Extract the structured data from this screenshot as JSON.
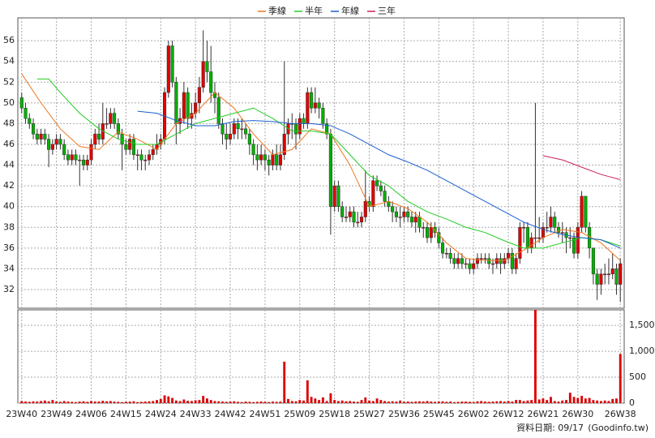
{
  "chart_data": {
    "type": "candlestick",
    "legend": "top",
    "grid": true,
    "up_color": "#e00000",
    "down_color": "#00b000",
    "xlim": [
      -1,
      156
    ],
    "ylim": [
      30.2,
      58.2
    ],
    "yticks": [
      32,
      34,
      36,
      38,
      40,
      42,
      44,
      46,
      48,
      50,
      52,
      54,
      56
    ],
    "xticks": [
      {
        "value": 0,
        "label": "23W40"
      },
      {
        "value": 9,
        "label": "23W49"
      },
      {
        "value": 18,
        "label": "24W06"
      },
      {
        "value": 27,
        "label": "24W15"
      },
      {
        "value": 36,
        "label": "24W24"
      },
      {
        "value": 45,
        "label": "24W33"
      },
      {
        "value": 54,
        "label": "24W42"
      },
      {
        "value": 63,
        "label": "24W51"
      },
      {
        "value": 72,
        "label": "25W09"
      },
      {
        "value": 81,
        "label": "25W18"
      },
      {
        "value": 90,
        "label": "25W27"
      },
      {
        "value": 99,
        "label": "25W36"
      },
      {
        "value": 108,
        "label": "25W45"
      },
      {
        "value": 117,
        "label": "26W02"
      },
      {
        "value": 126,
        "label": "26W12"
      },
      {
        "value": 135,
        "label": "26W21"
      },
      {
        "value": 144,
        "label": "26W30"
      },
      {
        "value": 155,
        "label": "26W38"
      }
    ],
    "x": [
      0,
      1,
      2,
      3,
      4,
      5,
      6,
      7,
      8,
      9,
      10,
      11,
      12,
      13,
      14,
      15,
      16,
      17,
      18,
      19,
      20,
      21,
      22,
      23,
      24,
      25,
      26,
      27,
      28,
      29,
      30,
      31,
      32,
      33,
      34,
      35,
      36,
      37,
      38,
      39,
      40,
      41,
      42,
      43,
      44,
      45,
      46,
      47,
      48,
      49,
      50,
      51,
      52,
      53,
      54,
      55,
      56,
      57,
      58,
      59,
      60,
      61,
      62,
      63,
      64,
      65,
      66,
      67,
      68,
      69,
      70,
      71,
      72,
      73,
      74,
      75,
      76,
      77,
      78,
      79,
      80,
      81,
      82,
      83,
      84,
      85,
      86,
      87,
      88,
      89,
      90,
      91,
      92,
      93,
      94,
      95,
      96,
      97,
      98,
      99,
      100,
      101,
      102,
      103,
      104,
      105,
      106,
      107,
      108,
      109,
      110,
      111,
      112,
      113,
      114,
      115,
      116,
      117,
      118,
      119,
      120,
      121,
      122,
      123,
      124,
      125,
      126,
      127,
      128,
      129,
      130,
      131,
      132,
      133,
      134,
      135,
      136,
      137,
      138,
      139,
      140,
      141,
      142,
      143,
      144,
      145,
      146,
      147,
      148,
      149,
      150,
      151,
      152,
      153,
      154,
      155
    ],
    "open": [
      50.5,
      49.5,
      48.5,
      48,
      47,
      46.5,
      47,
      46.5,
      45.5,
      46,
      46.5,
      46,
      45,
      44.5,
      45,
      44.5,
      44.5,
      44,
      44.5,
      46,
      47,
      46.5,
      48,
      48,
      49,
      48,
      47,
      46,
      45.5,
      46.5,
      45,
      45,
      44.5,
      44.5,
      45,
      45.5,
      46,
      46.5,
      51,
      55.5,
      52,
      48,
      48.5,
      51,
      48.5,
      49,
      50,
      51.5,
      54,
      53,
      51,
      50.5,
      48,
      47,
      46.5,
      47,
      48,
      47.5,
      47.5,
      47,
      46,
      45,
      44.5,
      45,
      44.5,
      44,
      45,
      44,
      45,
      47,
      48,
      48,
      47,
      48.5,
      48,
      51,
      49.5,
      50,
      49.5,
      48,
      47,
      40,
      42,
      40,
      39,
      39,
      39.5,
      38.5,
      38.5,
      39,
      40.5,
      40,
      42.5,
      42,
      41.5,
      40.5,
      40,
      39.5,
      39,
      39,
      39.5,
      39,
      38.5,
      39,
      38,
      38,
      37,
      38,
      37.5,
      36.5,
      35.5,
      35.5,
      35,
      34.5,
      35,
      34.5,
      34.5,
      34,
      34.5,
      35,
      35,
      35,
      34.5,
      34.5,
      35,
      34.5,
      35,
      35.5,
      34,
      35,
      38,
      38,
      36,
      37,
      37,
      37,
      38,
      38,
      39,
      38,
      37.5,
      37.5,
      37,
      37,
      35.5,
      38,
      41,
      38,
      36,
      33.5,
      32.5,
      33.5,
      33.5,
      33.5,
      34,
      32.5
    ],
    "high": [
      51,
      50,
      49,
      48.5,
      47.5,
      47.5,
      47.5,
      47,
      46.5,
      47,
      47,
      46.5,
      45.5,
      45.5,
      45.5,
      45,
      45,
      45,
      46.5,
      47.5,
      48,
      50,
      49.5,
      49.5,
      49.5,
      48.5,
      47.5,
      46.5,
      47,
      47,
      45.5,
      45.5,
      45,
      45.5,
      46,
      47,
      47,
      51.5,
      56,
      56,
      52.5,
      49.5,
      52,
      51.5,
      50,
      51,
      52.5,
      57,
      56,
      55.5,
      52,
      51,
      48.5,
      48,
      48,
      48.5,
      48.5,
      48.5,
      48,
      47.5,
      46.5,
      46,
      46,
      45.5,
      45,
      45.5,
      46,
      46,
      54,
      48.5,
      49,
      48.5,
      49,
      49,
      51.5,
      51.5,
      51.5,
      50.5,
      50,
      48.5,
      47.5,
      42.5,
      42.5,
      40.5,
      40,
      40,
      40,
      39.5,
      39.5,
      43.5,
      41,
      43,
      43,
      42.5,
      42,
      41,
      40.5,
      40,
      40,
      40,
      40,
      39.5,
      39.5,
      39.5,
      38.5,
      38.5,
      38.5,
      38.5,
      38,
      37,
      36,
      36,
      35.5,
      35.5,
      35.5,
      35,
      35,
      35,
      35.5,
      35.5,
      35.5,
      35.5,
      35,
      35.5,
      35.5,
      35.5,
      36,
      36,
      35.5,
      38.5,
      38.5,
      38.5,
      37.5,
      50,
      39,
      38.5,
      39.5,
      40,
      39.5,
      38.5,
      38.5,
      38,
      38,
      37.5,
      38.5,
      41.5,
      41,
      38.5,
      36,
      34,
      34,
      34.5,
      35,
      35.5,
      34.5,
      35
    ],
    "low": [
      49,
      48,
      47.5,
      46.5,
      46,
      46,
      46,
      43.8,
      45,
      45.5,
      45.5,
      44.5,
      44,
      44,
      44,
      42,
      43.5,
      43.5,
      44,
      45.5,
      46,
      46,
      47.5,
      47.5,
      47.5,
      46.5,
      43.5,
      45,
      45,
      44.5,
      43.5,
      43.5,
      43.5,
      44,
      44.5,
      45,
      45.5,
      46,
      50.5,
      51.5,
      46,
      47,
      48,
      47.5,
      47.5,
      48.5,
      49,
      51,
      52,
      50,
      49,
      47.5,
      46,
      45.5,
      46,
      46.5,
      46.5,
      46.5,
      46.5,
      45,
      44,
      43.5,
      44,
      43.5,
      43,
      43.5,
      43.5,
      43.5,
      44.5,
      46,
      46.5,
      45.5,
      46.5,
      47.5,
      47.5,
      49,
      49,
      48.5,
      47.5,
      46.5,
      37.3,
      39.5,
      39.5,
      38.5,
      38.5,
      38.5,
      38,
      38,
      38,
      38.5,
      39.5,
      39.5,
      41.5,
      41,
      40,
      39.5,
      38.5,
      38.5,
      38,
      38.5,
      38.5,
      38,
      37.5,
      37.5,
      37,
      36.5,
      36.5,
      37,
      36,
      35,
      35,
      34.5,
      34,
      34,
      34,
      34,
      33.5,
      33.5,
      34,
      34.5,
      34.5,
      34,
      33.5,
      34,
      33.5,
      34,
      34.5,
      33.5,
      33.5,
      34.5,
      36.5,
      35.5,
      35.5,
      36,
      36.5,
      36.5,
      37.5,
      37.5,
      37.5,
      37,
      36.5,
      35.5,
      36,
      35,
      35,
      37.5,
      37.5,
      35,
      32.5,
      31,
      31.5,
      32.5,
      32.5,
      33,
      31.5,
      30.8
    ],
    "close": [
      49.5,
      48.5,
      48,
      47,
      46.5,
      47,
      46.5,
      45.5,
      46,
      46.5,
      46,
      45,
      44.5,
      45,
      44.5,
      44.5,
      44,
      44.5,
      46,
      47,
      46.5,
      48,
      48,
      49,
      48,
      47,
      46,
      45.5,
      46.5,
      45,
      45,
      44.5,
      44.5,
      45,
      45.5,
      46,
      46.5,
      51,
      55.5,
      52,
      48,
      48.5,
      51,
      48.5,
      49,
      50,
      51.5,
      54,
      53,
      51,
      50.5,
      48,
      47,
      46.5,
      47,
      48,
      47.5,
      47.5,
      47,
      46,
      45,
      44.5,
      45,
      44.5,
      44,
      45,
      44,
      45,
      47,
      48,
      48,
      47,
      48.5,
      48,
      51,
      49.5,
      50,
      49.5,
      48,
      47,
      40,
      42,
      40,
      39,
      39,
      39.5,
      38.5,
      38.5,
      39,
      40.5,
      40,
      42.5,
      42,
      41.5,
      40.5,
      40,
      39.5,
      39,
      39,
      39.5,
      39,
      38.5,
      39,
      38,
      38,
      37,
      38,
      37.5,
      36.5,
      35.5,
      35.5,
      35,
      34.5,
      35,
      34.5,
      34.5,
      34,
      34.5,
      35,
      35,
      35,
      34.5,
      34.5,
      35,
      34.5,
      35,
      35.5,
      34,
      35,
      38,
      38,
      36,
      37,
      37,
      37,
      38,
      38,
      39,
      38,
      37.5,
      37.5,
      37,
      37,
      35.5,
      38,
      41,
      38,
      36,
      33.5,
      32.5,
      33.5,
      33.5,
      33.5,
      34,
      32.5,
      34.5
    ],
    "series": [
      {
        "name": "季線",
        "color": "#ee7722",
        "x": [
          0,
          5,
          10,
          15,
          20,
          25,
          30,
          35,
          40,
          45,
          50,
          55,
          60,
          65,
          70,
          75,
          80,
          85,
          90,
          95,
          100,
          105,
          110,
          115,
          120,
          125,
          130,
          135,
          140,
          145,
          150,
          155
        ],
        "values": [
          52.8,
          50,
          47.5,
          45.8,
          45.5,
          47.2,
          46.5,
          45.5,
          48,
          49,
          51,
          49.5,
          47,
          45,
          45.5,
          47.5,
          47,
          44,
          40,
          40.5,
          39.8,
          38.5,
          36.5,
          35,
          34.8,
          34.8,
          35.8,
          37,
          37.8,
          37.5,
          36.5,
          34.8
        ]
      },
      {
        "name": "半年",
        "color": "#22cc22",
        "x": [
          4,
          7,
          10,
          15,
          20,
          25,
          30,
          35,
          40,
          45,
          50,
          55,
          60,
          65,
          70,
          75,
          80,
          85,
          90,
          95,
          100,
          105,
          110,
          115,
          120,
          125,
          130,
          135,
          140,
          145,
          150,
          155
        ],
        "values": [
          52.3,
          52.3,
          51,
          49,
          47.5,
          46.5,
          46,
          46,
          47,
          48,
          48.5,
          49,
          49.5,
          48.5,
          47.3,
          47.3,
          47,
          45,
          43,
          42,
          40.5,
          39.5,
          38.8,
          38,
          37.5,
          36.7,
          36,
          36,
          36.5,
          37,
          36.8,
          36.2
        ]
      },
      {
        "name": "年線",
        "color": "#1a5fd0",
        "x": [
          30,
          35,
          40,
          45,
          50,
          55,
          60,
          65,
          70,
          75,
          80,
          85,
          90,
          95,
          100,
          105,
          110,
          115,
          120,
          125,
          130,
          135,
          140,
          145,
          150,
          155
        ],
        "values": [
          49.2,
          49,
          48.3,
          47.8,
          47.8,
          48.2,
          48.3,
          48.2,
          48,
          48,
          47.8,
          47,
          46,
          45,
          44.3,
          43.5,
          42.5,
          41.5,
          40.5,
          39.5,
          38.5,
          37.8,
          37.3,
          37,
          36.8,
          36
        ]
      },
      {
        "name": "三年",
        "color": "#cc2060",
        "x": [
          135,
          140,
          145,
          150,
          155
        ],
        "values": [
          44.9,
          44.5,
          43.8,
          43.1,
          42.6
        ]
      }
    ],
    "volume": {
      "color": "#dd0000",
      "ylim": [
        0,
        1800
      ],
      "yticks": [
        0,
        500,
        {
          "value": 1000,
          "label": "1,000"
        },
        {
          "value": 1500,
          "label": "1,500"
        }
      ],
      "values": [
        40,
        30,
        25,
        35,
        30,
        40,
        50,
        35,
        60,
        30,
        25,
        40,
        30,
        25,
        20,
        30,
        35,
        25,
        40,
        30,
        30,
        45,
        35,
        40,
        30,
        25,
        20,
        25,
        30,
        35,
        20,
        25,
        30,
        35,
        40,
        60,
        80,
        150,
        130,
        100,
        50,
        40,
        70,
        45,
        40,
        55,
        60,
        140,
        90,
        60,
        40,
        35,
        30,
        25,
        30,
        35,
        25,
        20,
        30,
        25,
        20,
        25,
        30,
        25,
        20,
        30,
        25,
        30,
        800,
        80,
        40,
        35,
        60,
        50,
        440,
        120,
        90,
        60,
        110,
        40,
        190,
        60,
        40,
        50,
        35,
        40,
        30,
        25,
        60,
        110,
        50,
        40,
        90,
        60,
        40,
        30,
        35,
        30,
        50,
        25,
        30,
        25,
        30,
        35,
        30,
        40,
        30,
        25,
        30,
        35,
        25,
        30,
        20,
        25,
        30,
        30,
        25,
        20,
        35,
        40,
        30,
        25,
        30,
        35,
        40,
        30,
        40,
        30,
        60,
        60,
        40,
        50,
        60,
        1800,
        70,
        90,
        60,
        120,
        40,
        30,
        50,
        60,
        200,
        120,
        100,
        140,
        90,
        100,
        60,
        50,
        40,
        50,
        40,
        80,
        90,
        950
      ]
    }
  },
  "footer": {
    "date": "資料日期: 09/17",
    "source": "(Goodinfo.tw)"
  }
}
